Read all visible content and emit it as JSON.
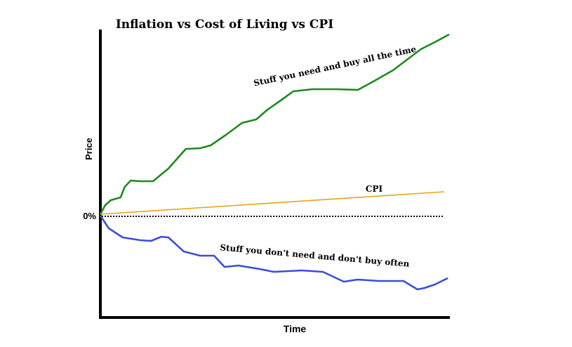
{
  "chart_data": {
    "type": "line",
    "title": "Inflation vs Cost of Living vs CPI",
    "xlabel": "Time",
    "ylabel": "Price",
    "y_tick_labels": [
      "0%"
    ],
    "xlim": [
      0,
      100
    ],
    "ylim": [
      -145,
      277
    ],
    "grid": false,
    "legend": "none",
    "baseline_style": "dotted",
    "series": [
      {
        "name": "Stuff you need and buy all the time",
        "color": "#1e8a1e",
        "x": [
          0,
          1.4,
          3,
          5.8,
          7,
          8.7,
          11.5,
          15.1,
          19.5,
          24.5,
          28.6,
          31.6,
          36,
          40.6,
          44.7,
          47.7,
          51.7,
          55.3,
          60.8,
          67.8,
          73.8,
          77.9,
          83.9,
          87.9,
          91.9,
          95.9,
          100
        ],
        "y": [
          2,
          15,
          22,
          26,
          41,
          50,
          49,
          49,
          67,
          95,
          96,
          100,
          115,
          132,
          137,
          150,
          164,
          177,
          180,
          180,
          179,
          190,
          207,
          222,
          237,
          247,
          258
        ]
      },
      {
        "name": "CPI",
        "color": "#e8a317",
        "x": [
          0,
          98.6
        ],
        "y": [
          2,
          34
        ]
      },
      {
        "name": "Stuff you don't need and don't buy often",
        "color": "#3a4fd6",
        "x": [
          0,
          2.4,
          6.4,
          11.5,
          14.5,
          17.5,
          19.5,
          23.9,
          28.6,
          32.6,
          35.6,
          39.6,
          45.7,
          49.7,
          57.7,
          63.8,
          69.8,
          73.8,
          79.9,
          86.9,
          90.9,
          92.9,
          95.9,
          99.6
        ],
        "y": [
          0,
          -18,
          -31,
          -35,
          -36,
          -30,
          -31,
          -51,
          -57,
          -57,
          -73,
          -71,
          -76,
          -80,
          -78,
          -80,
          -94,
          -91,
          -93,
          -93,
          -105,
          -103,
          -98,
          -89
        ]
      }
    ]
  }
}
